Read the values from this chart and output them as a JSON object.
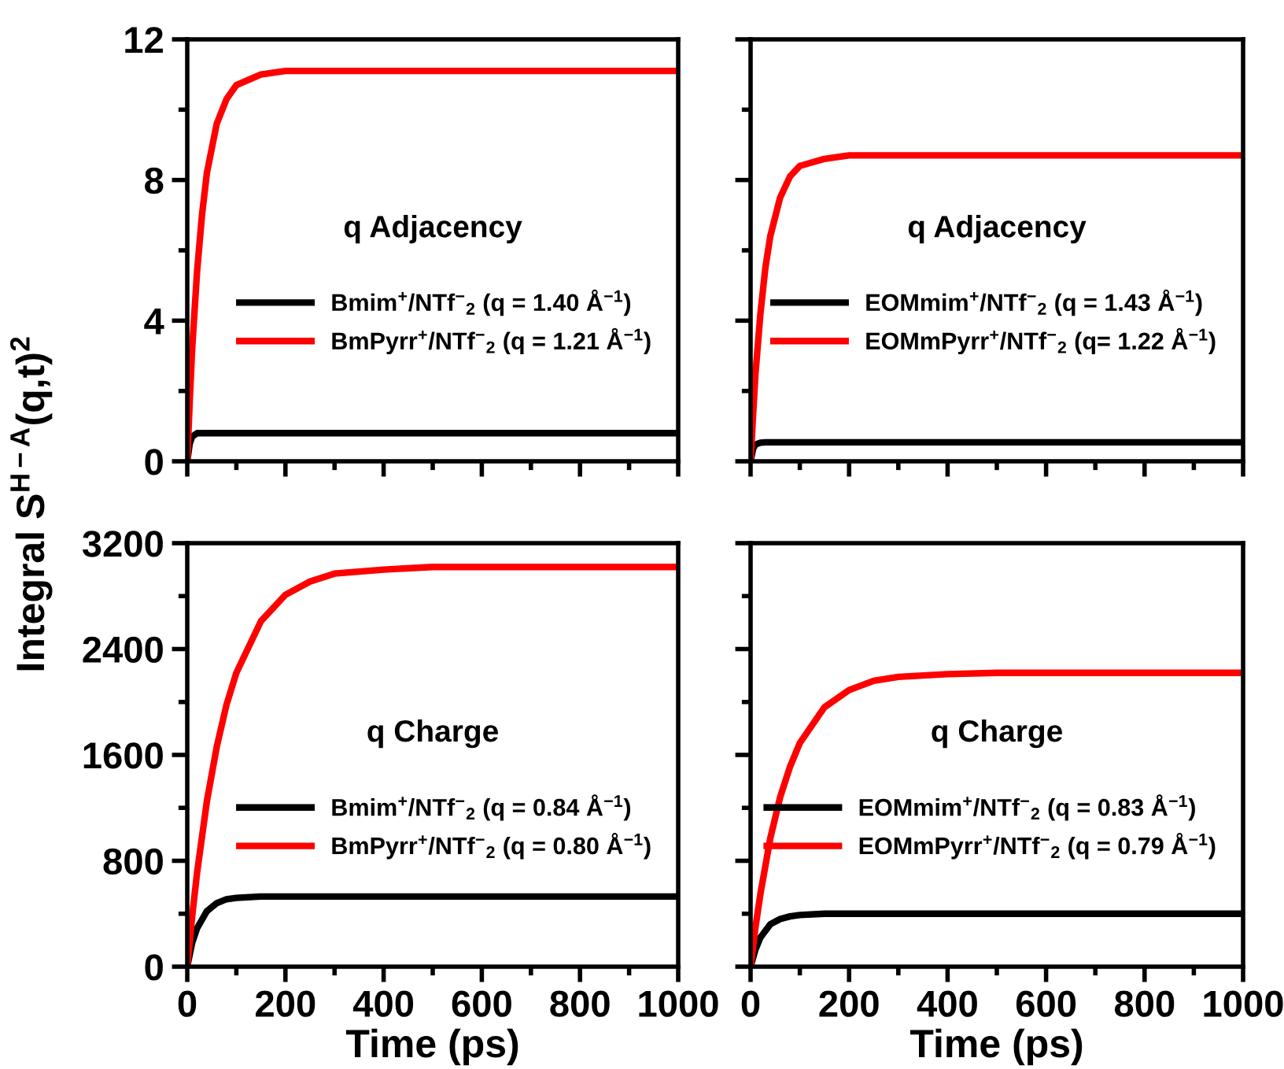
{
  "chart_data": [
    {
      "type": "line",
      "ylabel": "Integral S$^{H−A}$(q,t)$^{2}$",
      "annotations": [
        "q Adjacency"
      ],
      "xlim": [
        0,
        1000
      ],
      "ylim": [
        0,
        12
      ],
      "xticks": [
        0,
        {
          "value": 100,
          "label": null
        },
        200,
        {
          "value": 300,
          "label": null
        },
        400,
        {
          "value": 500,
          "label": null
        },
        600,
        {
          "value": 700,
          "label": null
        },
        800,
        {
          "value": 900,
          "label": null
        },
        1000
      ],
      "yticks": [
        0,
        {
          "value": 2,
          "label": null
        },
        4,
        {
          "value": 6,
          "label": null
        },
        8,
        {
          "value": 10,
          "label": null
        },
        12
      ],
      "tick_labels": "y",
      "legend": "right",
      "grid": false,
      "x": [
        0,
        5,
        10,
        20,
        30,
        40,
        60,
        80,
        100,
        150,
        200,
        300,
        500,
        1000
      ],
      "series": [
        {
          "name": "Bmim$^{+}$/NTf$^{−}$$_{2}$ (q = 1.40 Å$^{−1}$)",
          "color": "#000000",
          "values": [
            0,
            0.5,
            0.7,
            0.8,
            0.8,
            0.8,
            0.8,
            0.8,
            0.8,
            0.8,
            0.8,
            0.8,
            0.8,
            0.8
          ]
        },
        {
          "name": "BmPyrr$^{+}$/NTf$^{−}$$_{2}$ (q = 1.21 Å$^{−1}$)",
          "color": "#ff0000",
          "values": [
            0,
            1.7,
            3.2,
            5.4,
            7.0,
            8.2,
            9.6,
            10.3,
            10.7,
            11.0,
            11.1,
            11.1,
            11.1,
            11.1
          ]
        }
      ]
    },
    {
      "type": "line",
      "annotations": [
        "q Adjacency"
      ],
      "xlim": [
        0,
        1000
      ],
      "ylim": [
        0,
        12
      ],
      "xticks": [
        0,
        {
          "value": 100,
          "label": null
        },
        200,
        {
          "value": 300,
          "label": null
        },
        400,
        {
          "value": 500,
          "label": null
        },
        600,
        {
          "value": 700,
          "label": null
        },
        800,
        {
          "value": 900,
          "label": null
        },
        1000
      ],
      "yticks": [
        0,
        {
          "value": 2,
          "label": null
        },
        4,
        {
          "value": 6,
          "label": null
        },
        8,
        {
          "value": 10,
          "label": null
        },
        12
      ],
      "tick_labels": false,
      "legend": "right",
      "grid": false,
      "x": [
        0,
        5,
        10,
        20,
        30,
        40,
        60,
        80,
        100,
        150,
        200,
        300,
        500,
        1000
      ],
      "series": [
        {
          "name": "EOMmim$^{+}$/NTf$^{−}$$_{2}$ (q = 1.43 Å$^{−1}$)",
          "color": "#000000",
          "values": [
            0,
            0.35,
            0.48,
            0.53,
            0.54,
            0.54,
            0.54,
            0.54,
            0.54,
            0.54,
            0.54,
            0.54,
            0.54,
            0.54
          ]
        },
        {
          "name": "EOMmPyrr$^{+}$/NTf$^{−}$$_{2}$ (q= 1.22 Å$^{−1}$)",
          "color": "#ff0000",
          "values": [
            0,
            1.3,
            2.5,
            4.2,
            5.5,
            6.4,
            7.5,
            8.1,
            8.4,
            8.6,
            8.7,
            8.7,
            8.7,
            8.7
          ]
        }
      ]
    },
    {
      "type": "line",
      "xlabel": "Time (ps)",
      "annotations": [
        "q Charge"
      ],
      "xlim": [
        0,
        1000
      ],
      "ylim": [
        0,
        3200
      ],
      "xticks": [
        0,
        {
          "value": 100,
          "label": null
        },
        200,
        {
          "value": 300,
          "label": null
        },
        400,
        {
          "value": 500,
          "label": null
        },
        600,
        {
          "value": 700,
          "label": null
        },
        800,
        {
          "value": 900,
          "label": null
        },
        1000
      ],
      "yticks": [
        0,
        {
          "value": 400,
          "label": null
        },
        800,
        {
          "value": 1200,
          "label": null
        },
        1600,
        {
          "value": 2000,
          "label": null
        },
        2400,
        {
          "value": 2800,
          "label": null
        },
        3200
      ],
      "legend": "right",
      "grid": false,
      "x": [
        0,
        10,
        20,
        40,
        60,
        80,
        100,
        150,
        200,
        250,
        300,
        400,
        500,
        600,
        1000
      ],
      "series": [
        {
          "name": "Bmim$^{+}$/NTf$^{−}$$_{2}$ (q = 0.84 Å$^{−1}$)",
          "color": "#000000",
          "values": [
            0,
            180,
            290,
            420,
            480,
            510,
            520,
            530,
            530,
            530,
            530,
            530,
            530,
            530,
            530
          ]
        },
        {
          "name": "BmPyrr$^{+}$/NTf$^{−}$$_{2}$ (q = 0.80 Å$^{−1}$)",
          "color": "#ff0000",
          "values": [
            0,
            380,
            710,
            1250,
            1660,
            1980,
            2220,
            2610,
            2810,
            2910,
            2970,
            3000,
            3020,
            3020,
            3020
          ]
        }
      ]
    },
    {
      "type": "line",
      "xlabel": "Time (ps)",
      "annotations": [
        "q Charge"
      ],
      "xlim": [
        0,
        1000
      ],
      "ylim": [
        0,
        3200
      ],
      "xticks": [
        0,
        {
          "value": 100,
          "label": null
        },
        200,
        {
          "value": 300,
          "label": null
        },
        400,
        {
          "value": 500,
          "label": null
        },
        600,
        {
          "value": 700,
          "label": null
        },
        800,
        {
          "value": 900,
          "label": null
        },
        1000
      ],
      "yticks": [
        0,
        {
          "value": 400,
          "label": null
        },
        800,
        {
          "value": 1200,
          "label": null
        },
        1600,
        {
          "value": 2000,
          "label": null
        },
        2400,
        {
          "value": 2800,
          "label": null
        },
        3200
      ],
      "tick_labels": "x",
      "legend": "right",
      "grid": false,
      "x": [
        0,
        10,
        20,
        40,
        60,
        80,
        100,
        150,
        200,
        250,
        300,
        400,
        500,
        600,
        1000
      ],
      "series": [
        {
          "name": "EOMmim$^{+}$/NTf$^{−}$$_{2}$ (q = 0.83 Å$^{−1}$)",
          "color": "#000000",
          "values": [
            0,
            130,
            220,
            320,
            360,
            380,
            390,
            400,
            400,
            400,
            400,
            400,
            400,
            400,
            400
          ]
        },
        {
          "name": "EOMmPyrr$^{+}$/NTf$^{−}$$_{2}$ (q = 0.79 Å$^{−1}$)",
          "color": "#ff0000",
          "values": [
            0,
            300,
            550,
            970,
            1280,
            1510,
            1690,
            1960,
            2090,
            2160,
            2190,
            2210,
            2220,
            2220,
            2220
          ]
        }
      ]
    }
  ]
}
